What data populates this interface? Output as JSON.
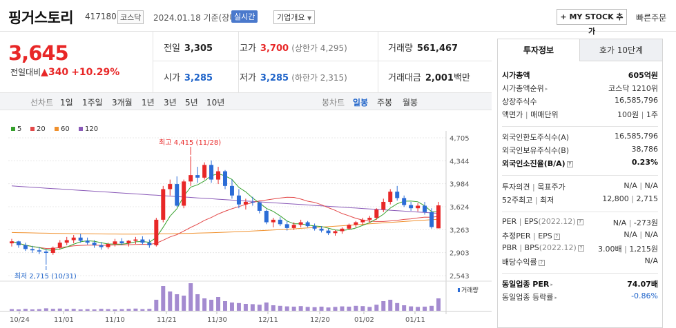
{
  "header": {
    "name": "핑거스토리",
    "code": "417180",
    "market": "코스닥",
    "date": "2024.01.18",
    "basis": "기준(장마감)",
    "realtime": "실시간",
    "company_info": "기업개요",
    "mystock": "MY STOCK 추가",
    "quick_order": "빠른주문"
  },
  "price": {
    "current": "3,645",
    "vs_label": "전일대비",
    "change": "340",
    "pct": "+10.29%"
  },
  "quote": {
    "prev_label": "전일",
    "prev": "3,305",
    "high_label": "고가",
    "high": "3,700",
    "upper_limit": "(상한가 4,295)",
    "volume_label": "거래량",
    "volume": "561,467",
    "open_label": "시가",
    "open": "3,285",
    "low_label": "저가",
    "low": "3,285",
    "lower_limit": "(하한가 2,315)",
    "amount_label": "거래대금",
    "amount": "2,001",
    "amount_unit": "백만"
  },
  "periods": {
    "line_label": "선차트",
    "items": [
      "1일",
      "1주일",
      "3개월",
      "1년",
      "3년",
      "5년",
      "10년"
    ],
    "candle_label": "봉차트",
    "candle_items": [
      "일봉",
      "주봉",
      "월봉"
    ],
    "selected": "일봉"
  },
  "chart_data": {
    "type": "candlestick",
    "legend": [
      {
        "name": "5",
        "color": "#35a02c"
      },
      {
        "name": "20",
        "color": "#e34848"
      },
      {
        "name": "60",
        "color": "#f0902c"
      },
      {
        "name": "120",
        "color": "#8a5ab8"
      }
    ],
    "y_ticks": [
      "4,705",
      "4,344",
      "3,984",
      "3,624",
      "3,263",
      "2,903",
      "2,543"
    ],
    "ylim": [
      2543,
      4705
    ],
    "x_labels": [
      "10/24",
      "11/01",
      "11/10",
      "11/21",
      "11/30",
      "12/11",
      "12/20",
      "01/02",
      "01/11"
    ],
    "high_annotation": "최고 4,415 (11/28)",
    "low_annotation": "최저 2,715 (10/31)",
    "volume_label": "거래량",
    "candles": [
      [
        3050,
        3120,
        3000,
        3080
      ],
      [
        3080,
        3090,
        2980,
        3020
      ],
      [
        3020,
        3060,
        2930,
        2960
      ],
      [
        2960,
        3010,
        2900,
        2940
      ],
      [
        2940,
        2990,
        2880,
        2920
      ],
      [
        2920,
        2960,
        2715,
        2900
      ],
      [
        2900,
        3000,
        2870,
        2980
      ],
      [
        2980,
        3100,
        2950,
        3060
      ],
      [
        3060,
        3150,
        3020,
        3100
      ],
      [
        3100,
        3180,
        3050,
        3140
      ],
      [
        3140,
        3200,
        3060,
        3090
      ],
      [
        3090,
        3140,
        3030,
        3060
      ],
      [
        3060,
        3100,
        2980,
        3020
      ],
      [
        3020,
        3070,
        2950,
        2990
      ],
      [
        2990,
        3060,
        2960,
        3040
      ],
      [
        3040,
        3120,
        3000,
        3080
      ],
      [
        3080,
        3130,
        3020,
        3050
      ],
      [
        3050,
        3100,
        3000,
        3090
      ],
      [
        3090,
        3150,
        3040,
        3110
      ],
      [
        3110,
        3160,
        3030,
        3060
      ],
      [
        3060,
        3110,
        2980,
        3020
      ],
      [
        3020,
        3450,
        3000,
        3420
      ],
      [
        3420,
        3950,
        3380,
        3900
      ],
      [
        3900,
        4050,
        3800,
        3980
      ],
      [
        3980,
        4100,
        3620,
        3640
      ],
      [
        3640,
        4050,
        3600,
        4020
      ],
      [
        4020,
        4415,
        3950,
        4120
      ],
      [
        4120,
        4250,
        4000,
        4080
      ],
      [
        4080,
        4320,
        4050,
        4280
      ],
      [
        4280,
        4350,
        4000,
        4050
      ],
      [
        4050,
        4250,
        3980,
        4180
      ],
      [
        4180,
        4200,
        3900,
        3950
      ],
      [
        3950,
        4050,
        3750,
        3800
      ],
      [
        3800,
        3900,
        3600,
        3660
      ],
      [
        3660,
        3750,
        3580,
        3700
      ],
      [
        3700,
        3780,
        3640,
        3690
      ],
      [
        3690,
        3700,
        3520,
        3560
      ],
      [
        3560,
        3580,
        3350,
        3380
      ],
      [
        3380,
        3450,
        3300,
        3420
      ],
      [
        3420,
        3460,
        3320,
        3350
      ],
      [
        3350,
        3400,
        3250,
        3290
      ],
      [
        3290,
        3380,
        3260,
        3340
      ],
      [
        3340,
        3420,
        3300,
        3380
      ],
      [
        3380,
        3400,
        3300,
        3320
      ],
      [
        3320,
        3360,
        3250,
        3280
      ],
      [
        3280,
        3320,
        3220,
        3250
      ],
      [
        3250,
        3280,
        3180,
        3210
      ],
      [
        3210,
        3260,
        3170,
        3240
      ],
      [
        3240,
        3300,
        3200,
        3280
      ],
      [
        3280,
        3360,
        3260,
        3340
      ],
      [
        3340,
        3400,
        3300,
        3380
      ],
      [
        3380,
        3450,
        3340,
        3420
      ],
      [
        3420,
        3480,
        3380,
        3450
      ],
      [
        3450,
        3600,
        3420,
        3580
      ],
      [
        3580,
        3750,
        3540,
        3700
      ],
      [
        3700,
        3900,
        3660,
        3860
      ],
      [
        3860,
        3950,
        3720,
        3760
      ],
      [
        3760,
        3800,
        3620,
        3650
      ],
      [
        3650,
        3700,
        3560,
        3600
      ],
      [
        3600,
        3680,
        3550,
        3640
      ],
      [
        3640,
        3700,
        3500,
        3540
      ],
      [
        3540,
        3600,
        3280,
        3305
      ],
      [
        3285,
        3700,
        3285,
        3645
      ]
    ],
    "volumes": [
      6,
      5,
      7,
      5,
      6,
      9,
      7,
      8,
      6,
      7,
      5,
      6,
      5,
      7,
      6,
      5,
      6,
      7,
      8,
      6,
      7,
      40,
      90,
      70,
      60,
      55,
      100,
      60,
      45,
      40,
      50,
      35,
      30,
      28,
      25,
      24,
      22,
      30,
      20,
      18,
      16,
      15,
      17,
      14,
      13,
      15,
      12,
      14,
      16,
      15,
      18,
      17,
      14,
      22,
      35,
      40,
      28,
      20,
      16,
      14,
      15,
      18,
      45
    ]
  },
  "panel": {
    "tab_on": "투자정보",
    "tab_off": "호가 10단계",
    "rows": {
      "cap_label": "시가총액",
      "cap": "605억원",
      "cap_rank_label": "시가총액순위",
      "cap_rank": "코스닥 1210위",
      "shares_label": "상장주식수",
      "shares": "16,585,796",
      "par_label": "액면가",
      "trade_unit_label": "매매단위",
      "par": "100원",
      "trade_unit": "1주",
      "foreign_limit_label": "외국인한도주식수(A)",
      "foreign_limit": "16,585,796",
      "foreign_hold_label": "외국인보유주식수(B)",
      "foreign_hold": "38,786",
      "foreign_ratio_label": "외국인소진율(B/A)",
      "foreign_ratio": "0.23%",
      "opinion_label": "투자의견",
      "target_label": "목표주가",
      "opinion": "N/A",
      "target": "N/A",
      "w52_label": "52주최고",
      "w52_low_label": "최저",
      "w52_high": "12,800",
      "w52_low": "2,715",
      "per_label": "PER",
      "eps_label": "EPS",
      "per_year": "(2022.12)",
      "per": "N/A",
      "eps": "-273원",
      "est_per_label": "추정PER",
      "est_eps_label": "EPS",
      "est_per": "N/A",
      "est_eps": "N/A",
      "pbr_label": "PBR",
      "bps_label": "BPS",
      "bps_year": "(2022.12)",
      "pbr": "3.00배",
      "bps": "1,215원",
      "div_label": "배당수익률",
      "div": "N/A",
      "sector_per_label": "동일업종 PER",
      "sector_per": "74.07배",
      "sector_chg_label": "동일업종 등락률",
      "sector_chg": "-0.86%"
    }
  }
}
